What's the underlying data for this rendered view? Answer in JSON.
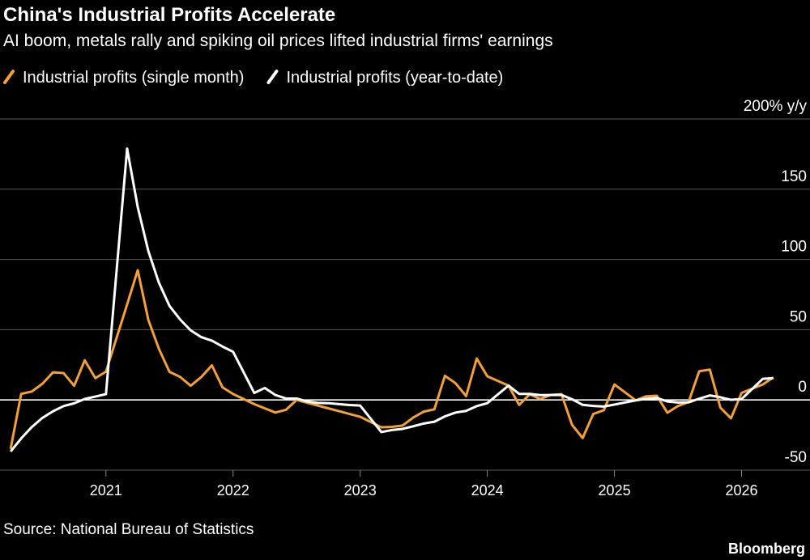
{
  "chart_data": {
    "type": "line",
    "title": "China's Industrial Profits Accelerate",
    "subtitle": "AI boom, metals rally and spiking oil prices lifted industrial firms' earnings",
    "source": "Source: National Bureau of Statistics",
    "credit": "Bloomberg",
    "x": [
      "2020-03",
      "2020-04",
      "2020-05",
      "2020-06",
      "2020-07",
      "2020-08",
      "2020-09",
      "2020-10",
      "2020-11",
      "2020-12",
      "2021-02",
      "2021-03",
      "2021-04",
      "2021-05",
      "2021-06",
      "2021-07",
      "2021-08",
      "2021-09",
      "2021-10",
      "2021-11",
      "2021-12",
      "2022-02",
      "2022-03",
      "2022-04",
      "2022-05",
      "2022-06",
      "2022-07",
      "2022-08",
      "2022-09",
      "2022-10",
      "2022-11",
      "2022-12",
      "2023-02",
      "2023-03",
      "2023-04",
      "2023-05",
      "2023-06",
      "2023-07",
      "2023-08",
      "2023-09",
      "2023-10",
      "2023-11",
      "2023-12",
      "2024-02",
      "2024-03",
      "2024-04",
      "2024-05",
      "2024-06",
      "2024-07",
      "2024-08",
      "2024-09",
      "2024-10",
      "2024-11",
      "2024-12",
      "2025-02",
      "2025-03",
      "2025-04",
      "2025-05",
      "2025-06",
      "2025-07",
      "2025-08",
      "2025-09",
      "2025-10",
      "2025-11",
      "2025-12",
      "2026-02",
      "2026-03"
    ],
    "series": [
      {
        "name": "Industrial profits (single month)",
        "color": "#f5a033",
        "values": [
          -34.9,
          4.3,
          6.0,
          11.5,
          19.6,
          19.1,
          10.1,
          28.2,
          15.5,
          20.1,
          68,
          92.3,
          57.0,
          36.4,
          20.0,
          16.4,
          10.1,
          16.3,
          24.6,
          9.0,
          4.2,
          -3,
          -6,
          -9,
          -7,
          0,
          -2,
          -4,
          -6,
          -8,
          -10,
          -12,
          -19.5,
          -19.2,
          -18.2,
          -12.6,
          -8.3,
          -6.7,
          17.2,
          11.9,
          2.7,
          29.5,
          16.8,
          10.2,
          -3.5,
          4.0,
          0.7,
          3.6,
          4.1,
          -17.8,
          -27.1,
          -10.0,
          -7.3,
          11.0,
          -0.3,
          2.6,
          3.0,
          -9.1,
          -4.3,
          -1.5,
          20.4,
          21.6,
          -5.5,
          -13.1,
          5.0,
          11.0,
          16.0
        ]
      },
      {
        "name": "Industrial profits (year-to-date)",
        "color": "#ffffff",
        "values": [
          -36.7,
          -27.4,
          -19.3,
          -12.8,
          -8.1,
          -4.4,
          -2.4,
          0.7,
          2.4,
          4.1,
          178.9,
          137.3,
          106.0,
          83.4,
          66.9,
          57.3,
          49.5,
          44.7,
          42.2,
          38.0,
          34.3,
          5.0,
          8.5,
          3.5,
          1.0,
          1.0,
          -1.1,
          -2.1,
          -2.3,
          -3.0,
          -3.6,
          -4.0,
          -22.9,
          -21.4,
          -20.6,
          -18.8,
          -16.8,
          -15.5,
          -11.7,
          -9.0,
          -7.8,
          -4.4,
          -2.3,
          10.2,
          4.3,
          4.3,
          3.4,
          3.5,
          3.6,
          0.5,
          -3.5,
          -4.3,
          -4.7,
          -3.3,
          -0.3,
          0.8,
          1.4,
          -1.1,
          -1.8,
          -1.7,
          0.9,
          3.2,
          1.9,
          0.1,
          0.6,
          15.0,
          15.5
        ]
      }
    ],
    "xlim": [
      "2020-02",
      "2026-06"
    ],
    "xticks": [
      "2021",
      "2022",
      "2023",
      "2024",
      "2025",
      "2026"
    ],
    "ylim": [
      -50,
      200
    ],
    "yticks": [
      {
        "value": 200,
        "label": "200% y/y"
      },
      150,
      100,
      50,
      0,
      -50
    ],
    "grid": true
  }
}
